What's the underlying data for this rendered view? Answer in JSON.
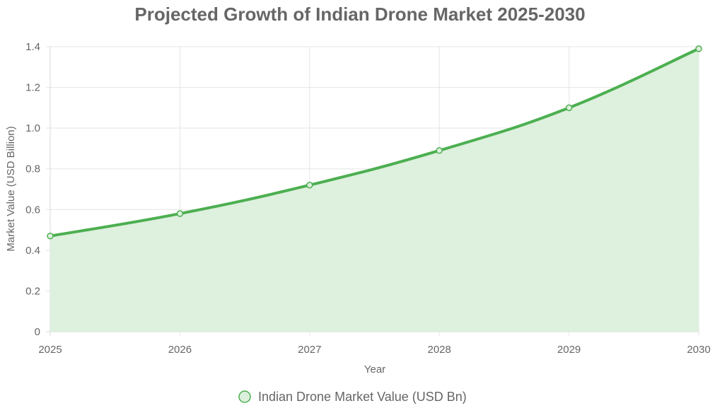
{
  "chart_data": {
    "type": "line",
    "title": "Projected Growth of Indian Drone Market 2025-2030",
    "xlabel": "Year",
    "ylabel": "Market Value (USD Billion)",
    "categories": [
      "2025",
      "2026",
      "2027",
      "2028",
      "2029",
      "2030"
    ],
    "series": [
      {
        "name": "Indian Drone Market Value (USD Bn)",
        "values": [
          0.47,
          0.58,
          0.72,
          0.89,
          1.1,
          1.39
        ],
        "color": "#4caf50",
        "fill_color": "#dcefdc",
        "filled": true
      }
    ],
    "ylim": [
      0,
      1.4
    ],
    "yticks": [
      "0",
      "0.2",
      "0.4",
      "0.6",
      "0.8",
      "1.0",
      "1.2",
      "1.4"
    ],
    "ytick_values": [
      0,
      0.2,
      0.4,
      0.6,
      0.8,
      1.0,
      1.2,
      1.4
    ],
    "grid": true,
    "legend_position": "bottom"
  }
}
